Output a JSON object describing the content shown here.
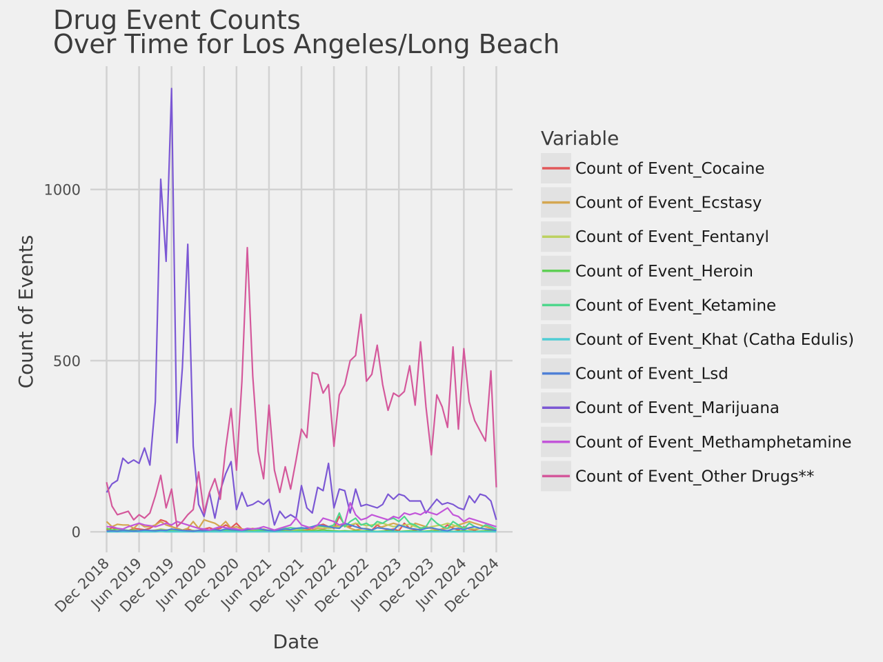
{
  "chart_data": {
    "type": "line",
    "title": "Drug Event Counts",
    "subtitle": "Over Time for Los Angeles/Long Beach",
    "xlabel": "Date",
    "ylabel": "Count of Events",
    "ylim": [
      -60,
      1360
    ],
    "xlim": [
      "2018-09",
      "2025-03"
    ],
    "x_tick_labels": [
      "Dec 2018",
      "Jun 2019",
      "Dec 2019",
      "Jun 2020",
      "Dec 2020",
      "Jun 2021",
      "Dec 2021",
      "Jun 2022",
      "Dec 2022",
      "Jun 2023",
      "Dec 2023",
      "Jun 2024",
      "Dec 2024"
    ],
    "y_tick_labels": [
      "0",
      "500",
      "1000"
    ],
    "y_ticks": [
      0,
      500,
      1000
    ],
    "grid": true,
    "legend_title": "Variable",
    "legend_position": "right",
    "x": [
      "2018-12",
      "2019-01",
      "2019-02",
      "2019-03",
      "2019-04",
      "2019-05",
      "2019-06",
      "2019-07",
      "2019-08",
      "2019-09",
      "2019-10",
      "2019-11",
      "2019-12",
      "2020-01",
      "2020-02",
      "2020-03",
      "2020-04",
      "2020-05",
      "2020-06",
      "2020-07",
      "2020-08",
      "2020-09",
      "2020-10",
      "2020-11",
      "2020-12",
      "2021-01",
      "2021-02",
      "2021-03",
      "2021-04",
      "2021-05",
      "2021-06",
      "2021-07",
      "2021-08",
      "2021-09",
      "2021-10",
      "2021-11",
      "2021-12",
      "2022-01",
      "2022-02",
      "2022-03",
      "2022-04",
      "2022-05",
      "2022-06",
      "2022-07",
      "2022-08",
      "2022-09",
      "2022-10",
      "2022-11",
      "2022-12",
      "2023-01",
      "2023-02",
      "2023-03",
      "2023-04",
      "2023-05",
      "2023-06",
      "2023-07",
      "2023-08",
      "2023-09",
      "2023-10",
      "2023-11",
      "2023-12",
      "2024-01",
      "2024-02",
      "2024-03",
      "2024-04",
      "2024-05",
      "2024-06",
      "2024-07",
      "2024-08",
      "2024-09",
      "2024-10",
      "2024-11",
      "2024-12"
    ],
    "series": [
      {
        "name": "Count of Event_Cocaine",
        "color": "#e15759",
        "values": [
          5,
          12,
          8,
          6,
          3,
          10,
          8,
          6,
          10,
          20,
          35,
          30,
          15,
          10,
          5,
          8,
          3,
          4,
          8,
          12,
          6,
          10,
          20,
          12,
          25,
          8,
          6,
          4,
          10,
          5,
          3,
          2,
          4,
          8,
          6,
          5,
          10,
          5,
          12,
          18,
          22,
          15,
          10,
          45,
          20,
          15,
          25,
          10,
          8,
          5,
          20,
          10,
          5,
          8,
          3,
          25,
          10,
          5,
          8,
          15,
          10,
          5,
          8,
          20,
          10,
          5,
          15,
          8,
          5,
          10,
          8,
          5,
          5
        ]
      },
      {
        "name": "Count of Event_Ecstasy",
        "color": "#d4a650",
        "values": [
          30,
          15,
          22,
          20,
          20,
          10,
          25,
          15,
          15,
          20,
          30,
          20,
          15,
          10,
          5,
          10,
          30,
          10,
          35,
          30,
          25,
          15,
          30,
          10,
          15,
          8,
          6,
          10,
          5,
          8,
          3,
          5,
          4,
          6,
          3,
          5,
          8,
          3,
          6,
          10,
          8,
          12,
          15,
          20,
          18,
          10,
          5,
          8,
          10,
          5,
          12,
          15,
          20,
          25,
          20,
          15,
          10,
          25,
          20,
          15,
          10,
          5,
          8,
          10,
          15,
          20,
          25,
          30,
          25,
          20,
          15,
          10,
          5
        ]
      },
      {
        "name": "Count of Event_Fentanyl",
        "color": "#bcd160",
        "values": [
          3,
          2,
          3,
          2,
          3,
          5,
          3,
          4,
          3,
          5,
          8,
          6,
          4,
          3,
          2,
          3,
          4,
          2,
          3,
          4,
          5,
          3,
          4,
          5,
          6,
          4,
          3,
          5,
          4,
          6,
          5,
          4,
          6,
          8,
          6,
          5,
          8,
          10,
          12,
          15,
          14,
          10,
          12,
          15,
          18,
          20,
          25,
          22,
          18,
          20,
          22,
          25,
          20,
          15,
          18,
          20,
          22,
          15,
          12,
          10,
          15,
          18,
          20,
          25,
          20,
          15,
          12,
          10,
          8,
          10,
          8,
          6,
          5
        ]
      },
      {
        "name": "Count of Event_Heroin",
        "color": "#5fcf55",
        "values": [
          10,
          5,
          8,
          6,
          4,
          5,
          3,
          2,
          3,
          4,
          3,
          2,
          3,
          2,
          1,
          2,
          3,
          2,
          3,
          2,
          1,
          2,
          3,
          2,
          3,
          2,
          1,
          2,
          1,
          2,
          1,
          2,
          3,
          2,
          1,
          2,
          3,
          2,
          3,
          4,
          5,
          4,
          3,
          2,
          3,
          2,
          3,
          2,
          3,
          2,
          1,
          2,
          3,
          2,
          1,
          2,
          3,
          2,
          1,
          2,
          3,
          2,
          1,
          2,
          1,
          2,
          3,
          2,
          1,
          2,
          3,
          2,
          1
        ]
      },
      {
        "name": "Count of Event_Ketamine",
        "color": "#4fd68c",
        "values": [
          2,
          1,
          2,
          1,
          2,
          1,
          2,
          3,
          2,
          3,
          2,
          3,
          2,
          3,
          2,
          1,
          2,
          1,
          2,
          3,
          2,
          3,
          2,
          3,
          5,
          4,
          6,
          8,
          5,
          6,
          4,
          5,
          8,
          10,
          12,
          10,
          8,
          12,
          15,
          18,
          16,
          15,
          20,
          55,
          15,
          30,
          40,
          20,
          25,
          15,
          30,
          25,
          35,
          40,
          30,
          45,
          25,
          20,
          10,
          15,
          40,
          25,
          15,
          10,
          30,
          20,
          10,
          25,
          15,
          10,
          20,
          15,
          8
        ]
      },
      {
        "name": "Count of Event_Khat (Catha Edulis)",
        "color": "#4fcdd4",
        "values": [
          0,
          0,
          0,
          0,
          0,
          1,
          0,
          0,
          0,
          0,
          1,
          0,
          0,
          0,
          0,
          0,
          0,
          0,
          0,
          0,
          0,
          0,
          0,
          0,
          0,
          0,
          0,
          0,
          0,
          0,
          0,
          0,
          0,
          0,
          0,
          0,
          0,
          0,
          0,
          0,
          0,
          0,
          0,
          0,
          0,
          0,
          0,
          0,
          0,
          0,
          0,
          0,
          0,
          0,
          0,
          0,
          0,
          0,
          0,
          0,
          0,
          0,
          0,
          0,
          0,
          0,
          0,
          0,
          0,
          0,
          0,
          0,
          0
        ]
      },
      {
        "name": "Count of Event_Lsd",
        "color": "#4e7fd6",
        "values": [
          2,
          3,
          2,
          4,
          3,
          2,
          3,
          5,
          4,
          3,
          5,
          4,
          8,
          6,
          4,
          3,
          2,
          4,
          3,
          5,
          6,
          4,
          8,
          6,
          5,
          4,
          6,
          8,
          10,
          6,
          4,
          3,
          5,
          8,
          6,
          10,
          12,
          10,
          15,
          20,
          18,
          15,
          12,
          10,
          25,
          20,
          15,
          10,
          8,
          5,
          12,
          10,
          8,
          5,
          20,
          15,
          10,
          8,
          5,
          10,
          12,
          8,
          5,
          3,
          8,
          10,
          6,
          12,
          15,
          10,
          8,
          6,
          4
        ]
      },
      {
        "name": "Count of Event_Marijuana",
        "color": "#7b57d4",
        "values": [
          115,
          140,
          150,
          215,
          200,
          210,
          200,
          245,
          195,
          380,
          1030,
          790,
          1295,
          260,
          480,
          840,
          250,
          80,
          45,
          115,
          40,
          120,
          170,
          205,
          65,
          115,
          75,
          80,
          90,
          80,
          95,
          20,
          60,
          40,
          50,
          40,
          135,
          70,
          55,
          130,
          120,
          200,
          70,
          125,
          120,
          55,
          125,
          75,
          80,
          75,
          70,
          80,
          110,
          95,
          110,
          105,
          90,
          90,
          90,
          55,
          75,
          95,
          80,
          85,
          80,
          70,
          65,
          105,
          85,
          110,
          105,
          90,
          35
        ]
      },
      {
        "name": "Count of Event_Methamphetamine",
        "color": "#c255d9",
        "values": [
          15,
          15,
          10,
          8,
          15,
          20,
          25,
          20,
          18,
          15,
          20,
          25,
          20,
          30,
          25,
          20,
          15,
          10,
          8,
          5,
          10,
          15,
          12,
          10,
          8,
          5,
          10,
          8,
          10,
          15,
          10,
          5,
          10,
          15,
          20,
          40,
          20,
          15,
          10,
          20,
          40,
          35,
          30,
          20,
          25,
          85,
          50,
          35,
          40,
          50,
          45,
          40,
          35,
          45,
          40,
          55,
          50,
          55,
          50,
          60,
          55,
          50,
          60,
          70,
          50,
          45,
          30,
          40,
          35,
          30,
          25,
          20,
          15
        ]
      },
      {
        "name": "Count of Event_Other Drugs**",
        "color": "#d4589b",
        "values": [
          145,
          75,
          50,
          55,
          60,
          35,
          50,
          40,
          55,
          105,
          165,
          70,
          125,
          15,
          30,
          50,
          65,
          175,
          55,
          115,
          155,
          95,
          245,
          360,
          180,
          440,
          830,
          455,
          235,
          155,
          370,
          180,
          115,
          190,
          125,
          210,
          300,
          275,
          465,
          460,
          405,
          430,
          250,
          400,
          430,
          500,
          515,
          635,
          440,
          460,
          545,
          430,
          355,
          405,
          395,
          410,
          485,
          370,
          555,
          365,
          225,
          400,
          365,
          305,
          540,
          300,
          535,
          380,
          325,
          295,
          265,
          470,
          130
        ]
      }
    ]
  }
}
